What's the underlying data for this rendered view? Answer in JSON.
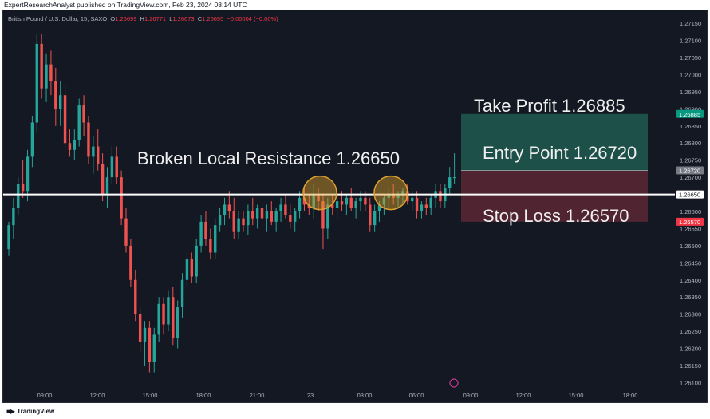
{
  "header": {
    "publisher": "ExpertResearchAnalyst published on TradingView.com, Feb 23, 2024 08:14 UTC",
    "symbol": "British Pound / U.S. Dollar, 15, SAXO",
    "open_label": "O",
    "open": "1.26699",
    "high_label": "H",
    "high": "1.26771",
    "low_label": "L",
    "low": "1.26673",
    "close_label": "C",
    "close": "1.26695",
    "change": "−0.00004 (−0.00%)"
  },
  "footer": {
    "brand": "TradingView"
  },
  "colors": {
    "up": "#26a69a",
    "down": "#ef5350",
    "background": "#141823",
    "resistance_line": "#ffffff",
    "profit_zone": "#1e5a4f",
    "loss_zone": "#5a2732",
    "take_profit_badge": "#089981",
    "stop_loss_badge": "#f23645",
    "entry_badge": "#787b86"
  },
  "chart_data": {
    "type": "candlestick",
    "y_axis": {
      "ylim": [
        1.2608,
        1.2719
      ],
      "ticks": [
        "1.27150",
        "1.27100",
        "1.27050",
        "1.27000",
        "1.26950",
        "1.26900",
        "1.26850",
        "1.26800",
        "1.26750",
        "1.26700",
        "1.26650",
        "1.26600",
        "1.26550",
        "1.26500",
        "1.26450",
        "1.26400",
        "1.26350",
        "1.26300",
        "1.26250",
        "1.26200",
        "1.26150",
        "1.26100"
      ]
    },
    "x_axis": {
      "ticks": [
        "09:00",
        "12:00",
        "15:00",
        "18:00",
        "21:00",
        "23",
        "03:00",
        "06:00",
        "09:00",
        "12:00",
        "15:00",
        "18:00"
      ]
    },
    "candles": [
      [
        1.2649,
        1.2657,
        1.2647,
        1.2656
      ],
      [
        1.2656,
        1.2664,
        1.2652,
        1.2661
      ],
      [
        1.2661,
        1.267,
        1.2659,
        1.2668
      ],
      [
        1.2668,
        1.2675,
        1.2664,
        1.2666
      ],
      [
        1.2666,
        1.2678,
        1.2663,
        1.2676
      ],
      [
        1.2676,
        1.2688,
        1.2673,
        1.2686
      ],
      [
        1.2686,
        1.2712,
        1.2683,
        1.2709
      ],
      [
        1.2709,
        1.2712,
        1.2693,
        1.2696
      ],
      [
        1.2696,
        1.2706,
        1.2692,
        1.2703
      ],
      [
        1.2703,
        1.2707,
        1.2694,
        1.2698
      ],
      [
        1.2698,
        1.2702,
        1.2685,
        1.269
      ],
      [
        1.269,
        1.2698,
        1.2685,
        1.2694
      ],
      [
        1.2694,
        1.2697,
        1.2678,
        1.268
      ],
      [
        1.268,
        1.2684,
        1.2676,
        1.2678
      ],
      [
        1.2678,
        1.2684,
        1.2675,
        1.2681
      ],
      [
        1.2681,
        1.2693,
        1.2679,
        1.2691
      ],
      [
        1.2691,
        1.2694,
        1.2682,
        1.2686
      ],
      [
        1.2686,
        1.2688,
        1.2674,
        1.2676
      ],
      [
        1.2676,
        1.2682,
        1.2671,
        1.2679
      ],
      [
        1.2679,
        1.2684,
        1.2672,
        1.2674
      ],
      [
        1.2674,
        1.2677,
        1.2663,
        1.2665
      ],
      [
        1.2665,
        1.2673,
        1.2661,
        1.267
      ],
      [
        1.267,
        1.2679,
        1.2668,
        1.2676
      ],
      [
        1.2676,
        1.2679,
        1.2668,
        1.267
      ],
      [
        1.267,
        1.2672,
        1.2656,
        1.2658
      ],
      [
        1.2658,
        1.2661,
        1.2648,
        1.265
      ],
      [
        1.265,
        1.2652,
        1.2638,
        1.264
      ],
      [
        1.264,
        1.2643,
        1.2628,
        1.263
      ],
      [
        1.263,
        1.2632,
        1.2619,
        1.2622
      ],
      [
        1.2622,
        1.2628,
        1.2615,
        1.2626
      ],
      [
        1.2626,
        1.2628,
        1.2613,
        1.2616
      ],
      [
        1.2616,
        1.2626,
        1.2613,
        1.2624
      ],
      [
        1.2624,
        1.2635,
        1.2622,
        1.2633
      ],
      [
        1.2633,
        1.2635,
        1.2624,
        1.2627
      ],
      [
        1.2627,
        1.2637,
        1.2625,
        1.2635
      ],
      [
        1.2635,
        1.2638,
        1.2621,
        1.2623
      ],
      [
        1.2623,
        1.2634,
        1.262,
        1.2632
      ],
      [
        1.2632,
        1.2642,
        1.2629,
        1.264
      ],
      [
        1.264,
        1.2648,
        1.2638,
        1.2646
      ],
      [
        1.2646,
        1.2648,
        1.2639,
        1.2641
      ],
      [
        1.2641,
        1.2652,
        1.2639,
        1.265
      ],
      [
        1.265,
        1.2659,
        1.2648,
        1.2657
      ],
      [
        1.2657,
        1.266,
        1.265,
        1.2652
      ],
      [
        1.2652,
        1.2655,
        1.2646,
        1.2648
      ],
      [
        1.2648,
        1.2658,
        1.2646,
        1.2656
      ],
      [
        1.2656,
        1.2661,
        1.2654,
        1.2659
      ],
      [
        1.2659,
        1.2664,
        1.2656,
        1.2662
      ],
      [
        1.2662,
        1.2666,
        1.2658,
        1.266
      ],
      [
        1.266,
        1.2664,
        1.2652,
        1.2654
      ],
      [
        1.2654,
        1.266,
        1.2652,
        1.2658
      ],
      [
        1.2658,
        1.266,
        1.2654,
        1.2656
      ],
      [
        1.2656,
        1.2662,
        1.2653,
        1.266
      ],
      [
        1.266,
        1.2664,
        1.2656,
        1.2658
      ],
      [
        1.2658,
        1.2662,
        1.2655,
        1.2661
      ],
      [
        1.2661,
        1.2663,
        1.2656,
        1.2658
      ],
      [
        1.2658,
        1.2662,
        1.2654,
        1.266
      ],
      [
        1.266,
        1.2663,
        1.2656,
        1.2657
      ],
      [
        1.2657,
        1.2661,
        1.2654,
        1.266
      ],
      [
        1.266,
        1.2664,
        1.2657,
        1.2662
      ],
      [
        1.2662,
        1.2665,
        1.2658,
        1.2659
      ],
      [
        1.2659,
        1.2662,
        1.2655,
        1.2657
      ],
      [
        1.2657,
        1.2661,
        1.2654,
        1.266
      ],
      [
        1.266,
        1.2666,
        1.2658,
        1.2664
      ],
      [
        1.2664,
        1.2667,
        1.266,
        1.2662
      ],
      [
        1.2662,
        1.2665,
        1.2659,
        1.2661
      ],
      [
        1.2661,
        1.2668,
        1.2658,
        1.2665
      ],
      [
        1.2665,
        1.2667,
        1.266,
        1.2663
      ],
      [
        1.2663,
        1.2665,
        1.2649,
        1.2655
      ],
      [
        1.2655,
        1.2664,
        1.2652,
        1.2662
      ],
      [
        1.2662,
        1.2665,
        1.2659,
        1.2661
      ],
      [
        1.2661,
        1.2664,
        1.2658,
        1.2663
      ],
      [
        1.2663,
        1.2666,
        1.266,
        1.2662
      ],
      [
        1.2662,
        1.2665,
        1.2659,
        1.2664
      ],
      [
        1.2664,
        1.2667,
        1.266,
        1.2661
      ],
      [
        1.2661,
        1.2664,
        1.2658,
        1.2663
      ],
      [
        1.2663,
        1.2666,
        1.266,
        1.2664
      ],
      [
        1.2664,
        1.2666,
        1.266,
        1.2662
      ],
      [
        1.2662,
        1.2664,
        1.2654,
        1.2656
      ],
      [
        1.2656,
        1.2662,
        1.2654,
        1.266
      ],
      [
        1.266,
        1.2663,
        1.2657,
        1.2662
      ],
      [
        1.2662,
        1.2665,
        1.2659,
        1.2664
      ],
      [
        1.2664,
        1.2667,
        1.2661,
        1.2665
      ],
      [
        1.2665,
        1.2668,
        1.2662,
        1.2664
      ],
      [
        1.2664,
        1.2666,
        1.2661,
        1.2665
      ],
      [
        1.2665,
        1.2667,
        1.2662,
        1.2666
      ],
      [
        1.2666,
        1.2668,
        1.2662,
        1.2663
      ],
      [
        1.2663,
        1.2666,
        1.266,
        1.2664
      ],
      [
        1.2664,
        1.2666,
        1.2658,
        1.266
      ],
      [
        1.266,
        1.2663,
        1.2658,
        1.2662
      ],
      [
        1.2662,
        1.2664,
        1.2659,
        1.2661
      ],
      [
        1.2661,
        1.2665,
        1.2659,
        1.2664
      ],
      [
        1.2664,
        1.2668,
        1.2661,
        1.2666
      ],
      [
        1.2666,
        1.2668,
        1.2661,
        1.2663
      ],
      [
        1.2663,
        1.2668,
        1.2661,
        1.2667
      ],
      [
        1.2667,
        1.2673,
        1.2665,
        1.267
      ],
      [
        1.267,
        1.2677,
        1.2668,
        1.267
      ]
    ],
    "annotations": {
      "resistance_label": "Broken Local Resistance 1.26650",
      "take_profit_label": "Take Profit 1.26885",
      "entry_label": "Entry Point 1.26720",
      "stop_loss_label": "Stop Loss 1.26570"
    },
    "levels": {
      "resistance": 1.2665,
      "take_profit": 1.26885,
      "entry": 1.2672,
      "stop_loss": 1.2657,
      "resistance_text": "1.26650",
      "take_profit_text": "1.26885",
      "entry_text": "1.26720",
      "stop_loss_text": "1.26570"
    }
  }
}
